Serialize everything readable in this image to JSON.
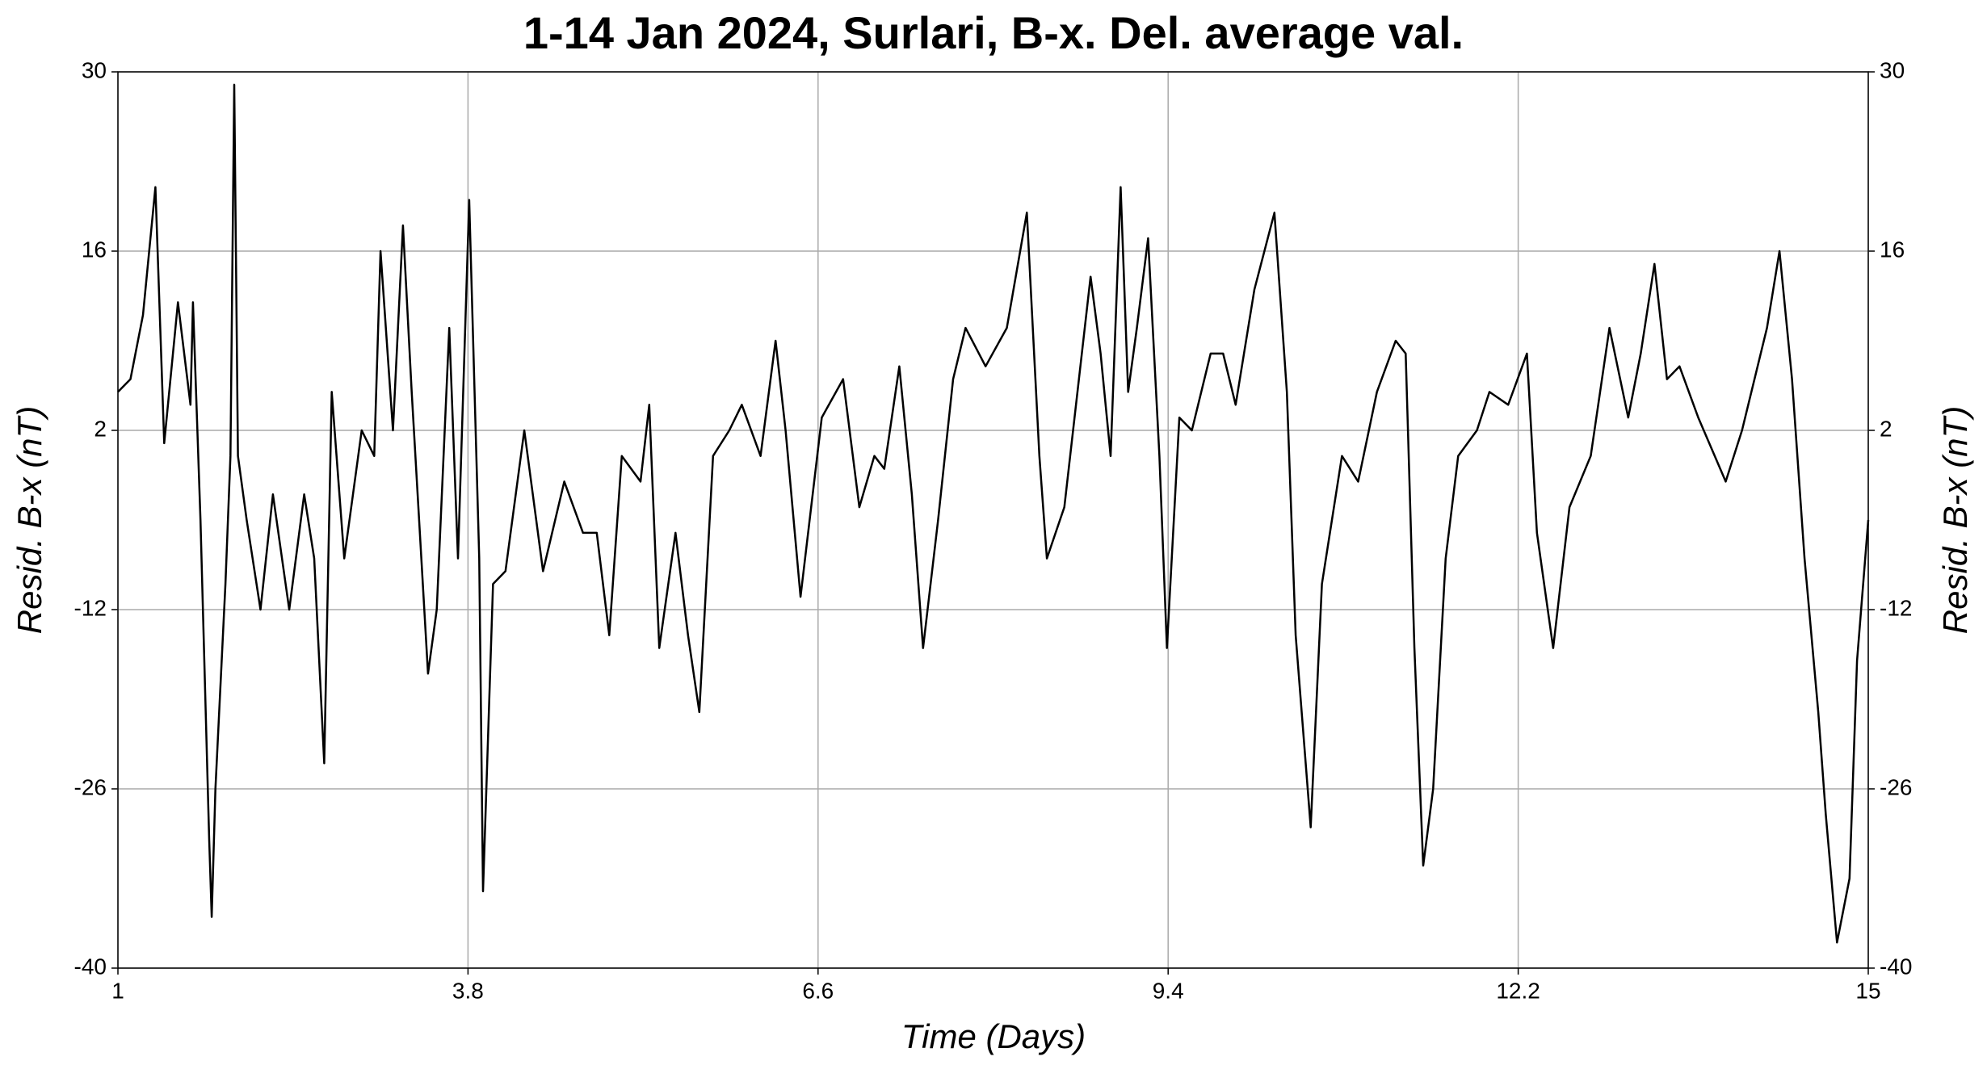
{
  "chart_data": {
    "type": "line",
    "title": "1-14 Jan 2024, Surlari, B-x. Del. average val.",
    "x_label": "Time (Days)",
    "y_label": "Resid. B-x (nT)",
    "xlim": [
      1,
      15
    ],
    "xticks": [
      1,
      3.8,
      6.6,
      9.4,
      12.2,
      15
    ],
    "ylim": [
      -40,
      30
    ],
    "yticks": [
      -40,
      -26,
      -12,
      2,
      16,
      30
    ],
    "grid": true,
    "x": [
      1,
      1.1,
      1.2,
      1.3,
      1.37,
      1.48,
      1.58,
      1.6,
      1.66,
      1.73,
      1.75,
      1.78,
      1.86,
      1.9,
      1.93,
      1.96,
      2.03,
      2.14,
      2.24,
      2.37,
      2.49,
      2.57,
      2.65,
      2.71,
      2.81,
      2.95,
      3.05,
      3.1,
      3.2,
      3.28,
      3.35,
      3.48,
      3.55,
      3.65,
      3.72,
      3.81,
      3.89,
      3.92,
      4.0,
      4.1,
      4.25,
      4.4,
      4.57,
      4.72,
      4.83,
      4.93,
      5.03,
      5.18,
      5.25,
      5.33,
      5.46,
      5.56,
      5.65,
      5.76,
      5.89,
      5.99,
      6.14,
      6.26,
      6.34,
      6.46,
      6.63,
      6.8,
      6.93,
      7.05,
      7.13,
      7.25,
      7.35,
      7.44,
      7.56,
      7.68,
      7.78,
      7.94,
      8.11,
      8.27,
      8.37,
      8.43,
      8.57,
      8.78,
      8.86,
      8.94,
      9.02,
      9.08,
      9.15,
      9.24,
      9.33,
      9.39,
      9.49,
      9.59,
      9.74,
      9.84,
      9.94,
      10.09,
      10.25,
      10.35,
      10.42,
      10.54,
      10.63,
      10.71,
      10.79,
      10.92,
      11.07,
      11.22,
      11.3,
      11.37,
      11.44,
      11.52,
      11.62,
      11.72,
      11.87,
      11.97,
      12.12,
      12.27,
      12.35,
      12.48,
      12.61,
      12.78,
      12.93,
      13.08,
      13.18,
      13.29,
      13.39,
      13.49,
      13.64,
      13.86,
      13.99,
      14.19,
      14.29,
      14.39,
      14.49,
      14.6,
      14.66,
      14.75,
      14.85,
      14.91,
      15
    ],
    "series": [
      {
        "name": "Resid. B-x",
        "color": "#000000",
        "values": [
          5,
          6,
          11,
          21,
          1,
          12,
          4,
          12,
          -5,
          -30,
          -36,
          -26,
          -10,
          0,
          29,
          0,
          -5,
          -12,
          -3,
          -12,
          -3,
          -8,
          -24,
          5,
          -8,
          2,
          0,
          16,
          2,
          18,
          5,
          -17,
          -12,
          10,
          -8,
          20,
          -8,
          -34,
          -10,
          -9,
          2,
          -9,
          -2,
          -6,
          -6,
          -14,
          0,
          -2,
          4,
          -15,
          -6,
          -14,
          -20,
          0,
          2,
          4,
          0,
          9,
          2,
          -11,
          3,
          6,
          -4,
          0,
          -1,
          7,
          -3,
          -15,
          -5,
          6,
          10,
          7,
          10,
          19,
          0,
          -8,
          -4,
          14,
          8,
          0,
          21,
          5,
          10,
          17,
          0,
          -15,
          3,
          2,
          8,
          8,
          4,
          13,
          19,
          5,
          -14,
          -29,
          -10,
          -5,
          0,
          -2,
          5,
          9,
          8,
          -15,
          -32,
          -26,
          -8,
          0,
          2,
          5,
          4,
          8,
          -6,
          -15,
          -4,
          0,
          10,
          3,
          8,
          15,
          6,
          7,
          3,
          -2,
          2,
          10,
          16,
          6,
          -8,
          -20,
          -28,
          -38,
          -33,
          -16,
          -5
        ]
      }
    ]
  }
}
